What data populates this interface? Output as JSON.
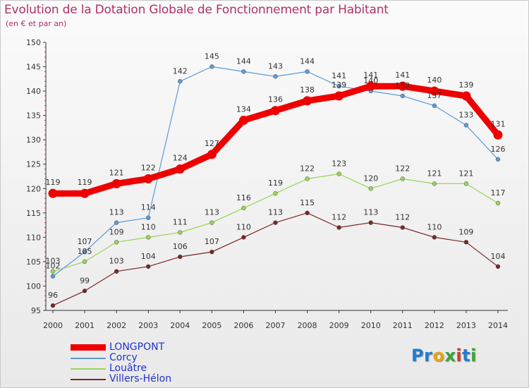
{
  "header": {
    "title": "Evolution de la Dotation Globale de Fonctionnement par Habitant",
    "subtitle": "(en € et par an)"
  },
  "logo": {
    "text": "Proxiti"
  },
  "chart_data": {
    "type": "line",
    "title": "Evolution de la Dotation Globale de Fonctionnement par Habitant",
    "subtitle": "(en € et par an)",
    "xlabel": "",
    "ylabel": "",
    "x": [
      "2000",
      "2001",
      "2002",
      "2003",
      "2004",
      "2005",
      "2006",
      "2007",
      "2008",
      "2009",
      "2010",
      "2011",
      "2012",
      "2013",
      "2014"
    ],
    "ylim": [
      95,
      150
    ],
    "yticks": [
      95,
      100,
      105,
      110,
      115,
      120,
      125,
      130,
      135,
      140,
      145,
      150
    ],
    "grid": false,
    "legend": "bottom-left",
    "series": [
      {
        "name": "LONGPONT",
        "color": "#ee0000",
        "values": [
          119,
          119,
          121,
          122,
          124,
          127,
          134,
          136,
          138,
          139,
          141,
          141,
          140,
          139,
          131
        ]
      },
      {
        "name": "Corcy",
        "color": "#5b9bd5",
        "values": [
          102,
          107,
          113,
          114,
          142,
          145,
          144,
          143,
          144,
          141,
          140,
          139,
          137,
          133,
          126
        ]
      },
      {
        "name": "Louâtre",
        "color": "#99d35a",
        "values": [
          103,
          105,
          109,
          110,
          111,
          113,
          116,
          119,
          122,
          123,
          120,
          122,
          121,
          121,
          117
        ]
      },
      {
        "name": "Villers-Hélon",
        "color": "#7a2626",
        "values": [
          96,
          99,
          103,
          104,
          106,
          107,
          110,
          113,
          115,
          112,
          113,
          112,
          110,
          109,
          104
        ]
      }
    ]
  }
}
